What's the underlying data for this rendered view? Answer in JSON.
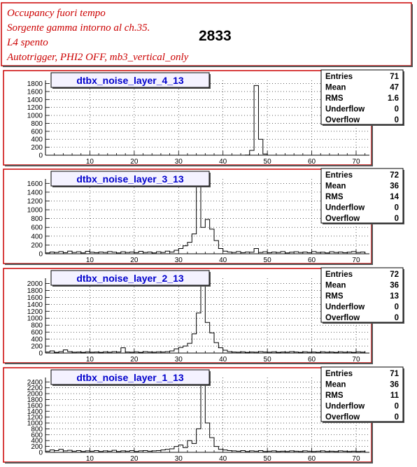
{
  "header": {
    "lines": [
      "Occupancy fuori tempo",
      "Sorgente gamma intorno al ch.35.",
      "L4 spento",
      "Autotrigger, PHI2 OFF, mb3_vertical_only"
    ],
    "run_number": "2833"
  },
  "colors": {
    "frame": "#cc0000",
    "title_text": "#0000cc",
    "header_text": "#cc0000",
    "histogram": "#000000",
    "title_box": "#f4f2ff"
  },
  "stats_labels": [
    "Entries",
    "Mean",
    "RMS",
    "Underflow",
    "Overflow"
  ],
  "chart_data": [
    {
      "type": "histogram",
      "title": "dtbx_noise_layer_4_13",
      "stats": {
        "Entries": "71",
        "Mean": "47",
        "RMS": "1.6",
        "Underflow": "0",
        "Overflow": "0"
      },
      "xlim": [
        0,
        73
      ],
      "ylim": [
        0,
        1880
      ],
      "x_ticks": [
        10,
        20,
        30,
        40,
        50,
        60,
        70
      ],
      "y_ticks": [
        0,
        200,
        400,
        600,
        800,
        1000,
        1200,
        1400,
        1600,
        1800
      ],
      "grid": true,
      "bins": [
        [
          45,
          5
        ],
        [
          46,
          120
        ],
        [
          47,
          1750
        ],
        [
          48,
          400
        ],
        [
          49,
          30
        ]
      ]
    },
    {
      "type": "histogram",
      "title": "dtbx_noise_layer_3_13",
      "stats": {
        "Entries": "72",
        "Mean": "36",
        "RMS": "14",
        "Underflow": "0",
        "Overflow": "0"
      },
      "xlim": [
        0,
        73
      ],
      "ylim": [
        0,
        1700
      ],
      "x_ticks": [
        10,
        20,
        30,
        40,
        50,
        60,
        70
      ],
      "y_ticks": [
        0,
        200,
        400,
        600,
        800,
        1000,
        1200,
        1400,
        1600
      ],
      "grid": true,
      "bins": [
        [
          0,
          20
        ],
        [
          1,
          40
        ],
        [
          2,
          30
        ],
        [
          3,
          50
        ],
        [
          4,
          25
        ],
        [
          5,
          60
        ],
        [
          6,
          30
        ],
        [
          7,
          45
        ],
        [
          8,
          20
        ],
        [
          9,
          55
        ],
        [
          10,
          35
        ],
        [
          11,
          25
        ],
        [
          12,
          40
        ],
        [
          13,
          30
        ],
        [
          14,
          50
        ],
        [
          15,
          35
        ],
        [
          16,
          20
        ],
        [
          17,
          45
        ],
        [
          18,
          30
        ],
        [
          19,
          40
        ],
        [
          20,
          25
        ],
        [
          21,
          55
        ],
        [
          22,
          30
        ],
        [
          23,
          40
        ],
        [
          24,
          20
        ],
        [
          25,
          45
        ],
        [
          26,
          30
        ],
        [
          27,
          60
        ],
        [
          28,
          40
        ],
        [
          29,
          80
        ],
        [
          30,
          120
        ],
        [
          31,
          180
        ],
        [
          32,
          260
        ],
        [
          33,
          450
        ],
        [
          34,
          1550
        ],
        [
          35,
          600
        ],
        [
          36,
          780
        ],
        [
          37,
          560
        ],
        [
          38,
          300
        ],
        [
          39,
          120
        ],
        [
          40,
          60
        ],
        [
          41,
          40
        ],
        [
          42,
          30
        ],
        [
          43,
          50
        ],
        [
          44,
          25
        ],
        [
          45,
          40
        ],
        [
          46,
          35
        ],
        [
          47,
          120
        ],
        [
          48,
          30
        ],
        [
          49,
          45
        ],
        [
          50,
          25
        ],
        [
          51,
          40
        ],
        [
          52,
          30
        ],
        [
          53,
          50
        ],
        [
          54,
          20
        ],
        [
          55,
          35
        ],
        [
          56,
          45
        ],
        [
          57,
          30
        ],
        [
          58,
          40
        ],
        [
          59,
          25
        ],
        [
          60,
          50
        ],
        [
          61,
          30
        ],
        [
          62,
          35
        ],
        [
          63,
          20
        ],
        [
          64,
          45
        ],
        [
          65,
          30
        ],
        [
          66,
          40
        ],
        [
          67,
          25
        ],
        [
          68,
          35
        ],
        [
          69,
          50
        ],
        [
          70,
          30
        ],
        [
          71,
          40
        ]
      ]
    },
    {
      "type": "histogram",
      "title": "dtbx_noise_layer_2_13",
      "stats": {
        "Entries": "72",
        "Mean": "36",
        "RMS": "13",
        "Underflow": "0",
        "Overflow": "0"
      },
      "xlim": [
        0,
        73
      ],
      "ylim": [
        0,
        2150
      ],
      "x_ticks": [
        10,
        20,
        30,
        40,
        50,
        60,
        70
      ],
      "y_ticks": [
        0,
        200,
        400,
        600,
        800,
        1000,
        1200,
        1400,
        1600,
        1800,
        2000
      ],
      "grid": true,
      "bins": [
        [
          0,
          30
        ],
        [
          1,
          60
        ],
        [
          2,
          20
        ],
        [
          3,
          40
        ],
        [
          4,
          90
        ],
        [
          5,
          40
        ],
        [
          6,
          25
        ],
        [
          7,
          30
        ],
        [
          8,
          20
        ],
        [
          9,
          35
        ],
        [
          10,
          25
        ],
        [
          11,
          30
        ],
        [
          12,
          20
        ],
        [
          13,
          35
        ],
        [
          14,
          25
        ],
        [
          15,
          40
        ],
        [
          16,
          30
        ],
        [
          17,
          150
        ],
        [
          18,
          30
        ],
        [
          19,
          25
        ],
        [
          20,
          35
        ],
        [
          21,
          20
        ],
        [
          22,
          40
        ],
        [
          23,
          30
        ],
        [
          24,
          25
        ],
        [
          25,
          35
        ],
        [
          26,
          30
        ],
        [
          27,
          40
        ],
        [
          28,
          60
        ],
        [
          29,
          120
        ],
        [
          30,
          160
        ],
        [
          31,
          200
        ],
        [
          32,
          280
        ],
        [
          33,
          550
        ],
        [
          34,
          1150
        ],
        [
          35,
          2100
        ],
        [
          36,
          880
        ],
        [
          37,
          580
        ],
        [
          38,
          300
        ],
        [
          39,
          150
        ],
        [
          40,
          80
        ],
        [
          41,
          40
        ],
        [
          42,
          30
        ],
        [
          43,
          25
        ],
        [
          44,
          35
        ],
        [
          45,
          20
        ],
        [
          46,
          30
        ],
        [
          47,
          25
        ],
        [
          48,
          40
        ],
        [
          49,
          30
        ],
        [
          50,
          25
        ],
        [
          51,
          35
        ],
        [
          52,
          20
        ],
        [
          53,
          30
        ],
        [
          54,
          25
        ],
        [
          55,
          40
        ],
        [
          56,
          30
        ],
        [
          57,
          20
        ],
        [
          58,
          35
        ],
        [
          59,
          25
        ],
        [
          60,
          30
        ],
        [
          61,
          20
        ],
        [
          62,
          35
        ],
        [
          63,
          25
        ],
        [
          64,
          30
        ],
        [
          65,
          20
        ],
        [
          66,
          35
        ],
        [
          67,
          25
        ],
        [
          68,
          30
        ],
        [
          69,
          20
        ],
        [
          70,
          35
        ],
        [
          71,
          25
        ]
      ]
    },
    {
      "type": "histogram",
      "title": "dtbx_noise_layer_1_13",
      "stats": {
        "Entries": "71",
        "Mean": "36",
        "RMS": "11",
        "Underflow": "0",
        "Overflow": "0"
      },
      "xlim": [
        0,
        73
      ],
      "ylim": [
        0,
        2550
      ],
      "x_ticks": [
        10,
        20,
        30,
        40,
        50,
        60,
        70
      ],
      "y_ticks": [
        0,
        200,
        400,
        600,
        800,
        1000,
        1200,
        1400,
        1600,
        1800,
        2000,
        2200,
        2400
      ],
      "grid": true,
      "bins": [
        [
          0,
          40
        ],
        [
          1,
          80
        ],
        [
          2,
          60
        ],
        [
          3,
          100
        ],
        [
          4,
          50
        ],
        [
          5,
          70
        ],
        [
          6,
          40
        ],
        [
          7,
          60
        ],
        [
          8,
          30
        ],
        [
          9,
          50
        ],
        [
          10,
          40
        ],
        [
          11,
          60
        ],
        [
          12,
          30
        ],
        [
          13,
          50
        ],
        [
          14,
          40
        ],
        [
          15,
          70
        ],
        [
          16,
          30
        ],
        [
          17,
          50
        ],
        [
          18,
          40
        ],
        [
          19,
          60
        ],
        [
          20,
          30
        ],
        [
          21,
          50
        ],
        [
          22,
          60
        ],
        [
          23,
          40
        ],
        [
          24,
          50
        ],
        [
          25,
          60
        ],
        [
          26,
          80
        ],
        [
          27,
          100
        ],
        [
          28,
          120
        ],
        [
          29,
          200
        ],
        [
          30,
          250
        ],
        [
          31,
          160
        ],
        [
          32,
          400
        ],
        [
          33,
          300
        ],
        [
          34,
          800
        ],
        [
          35,
          2400
        ],
        [
          36,
          1000
        ],
        [
          37,
          500
        ],
        [
          38,
          200
        ],
        [
          39,
          100
        ],
        [
          40,
          80
        ],
        [
          41,
          60
        ],
        [
          42,
          50
        ],
        [
          43,
          40
        ],
        [
          44,
          60
        ],
        [
          45,
          30
        ],
        [
          46,
          50
        ],
        [
          47,
          40
        ],
        [
          48,
          60
        ],
        [
          49,
          30
        ],
        [
          50,
          40
        ],
        [
          51,
          50
        ],
        [
          52,
          30
        ],
        [
          53,
          40
        ],
        [
          54,
          30
        ],
        [
          55,
          50
        ],
        [
          56,
          40
        ],
        [
          57,
          30
        ],
        [
          58,
          50
        ],
        [
          59,
          40
        ],
        [
          60,
          30
        ],
        [
          61,
          40
        ],
        [
          62,
          50
        ],
        [
          63,
          30
        ],
        [
          64,
          40
        ],
        [
          65,
          30
        ],
        [
          66,
          50
        ],
        [
          67,
          40
        ],
        [
          68,
          30
        ],
        [
          69,
          40
        ],
        [
          70,
          30
        ],
        [
          71,
          40
        ]
      ]
    }
  ]
}
